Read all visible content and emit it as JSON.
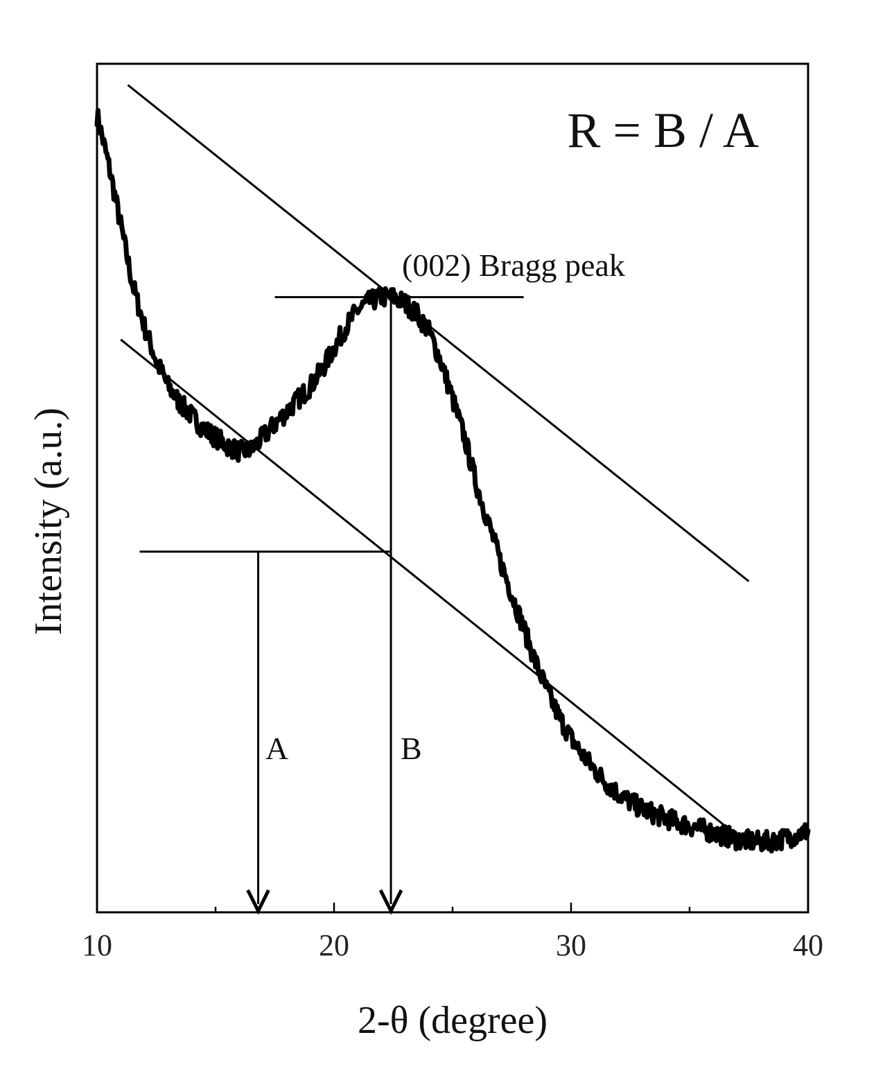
{
  "chart_data": {
    "type": "line",
    "title": "",
    "xlabel": "2-θ (degree)",
    "ylabel": "Intensity (a.u.)",
    "xlim": [
      10,
      40
    ],
    "ylim": [
      0,
      100
    ],
    "x_ticks": [
      "10",
      "20",
      "30",
      "40"
    ],
    "x_minor_ticks": [
      15,
      25,
      35
    ],
    "y_ticks": [],
    "grid": false,
    "series": [
      {
        "x": [
          10,
          10.5,
          11,
          11.5,
          12,
          12.5,
          13,
          13.5,
          14,
          14.5,
          15,
          15.5,
          16,
          16.5,
          17,
          17.5,
          18,
          18.5,
          19,
          19.5,
          20,
          20.5,
          21,
          21.5,
          22,
          22.5,
          23,
          23.5,
          24,
          24.5,
          25,
          25.5,
          26,
          26.5,
          27,
          27.5,
          28,
          28.5,
          29,
          29.5,
          30,
          30.5,
          31,
          31.5,
          32,
          32.5,
          33,
          33.5,
          34,
          34.5,
          35,
          35.5,
          36,
          36.5,
          37,
          37.5,
          38,
          38.5,
          39,
          39.5,
          40
        ],
        "values": [
          94,
          88,
          81,
          74,
          69,
          65,
          62,
          60,
          58.5,
          57,
          56,
          55,
          54.3,
          54.5,
          56,
          57.5,
          59,
          60.5,
          62,
          64,
          66.5,
          69,
          71,
          72,
          72.5,
          72.5,
          71.8,
          70.5,
          68.5,
          65,
          60.5,
          56,
          50.5,
          46,
          41.5,
          37.5,
          33.5,
          29.5,
          26,
          23,
          20.5,
          18.5,
          16.8,
          15.2,
          14,
          13,
          12.2,
          11.6,
          11.1,
          10.6,
          10.2,
          9.8,
          9.4,
          9.0,
          8.6,
          8.4,
          8.3,
          8.4,
          8.7,
          9.1,
          9.6
        ],
        "noise": 1.2
      }
    ],
    "guides": {
      "upper_tangent": {
        "x": [
          11.3,
          37.5
        ],
        "y": [
          97.5,
          39.0
        ]
      },
      "lower_tangent": {
        "x": [
          11.0,
          37.2
        ],
        "y": [
          67.5,
          8.6
        ]
      },
      "peak_level": {
        "x": [
          17.5,
          28.0
        ],
        "y": 72.5
      },
      "baseline_level": {
        "x": [
          11.8,
          22.4
        ],
        "y": 42.5
      },
      "arrow_A": {
        "x": 16.8,
        "y_top": 42.5,
        "label": "A"
      },
      "arrow_B": {
        "x": 22.4,
        "y_top": 72.5,
        "label": "B"
      }
    },
    "annotations": {
      "formula": "R = B / A",
      "peak_label": "(002) Bragg peak"
    }
  }
}
